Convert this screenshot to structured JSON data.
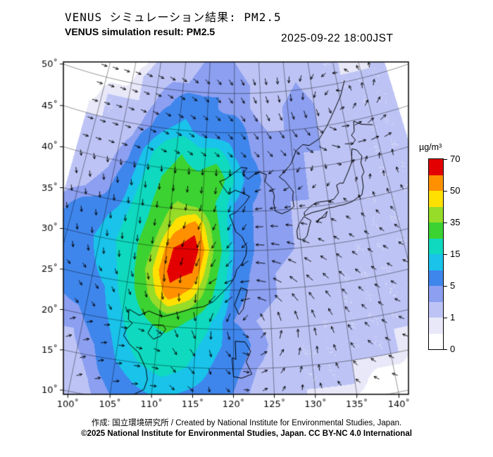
{
  "header": {
    "title_ja": "VENUS シミュレーション結果: PM2.5",
    "title_en": "VENUS simulation result: PM2.5",
    "timestamp": "2025-09-22 18:00JST"
  },
  "footer": {
    "credit": "作成: 国立環境研究所 / Created by National Institute for Environmental Studies, Japan.",
    "copyright": "©2025 National Institute for Environmental Studies, Japan. CC BY-NC 4.0 International"
  },
  "chart_data": {
    "type": "heatmap",
    "title": "VENUS simulation result: PM2.5",
    "variable": "PM2.5",
    "units": "µg/m³",
    "projection": {
      "type": "equidistant-conic",
      "standard_parallels": [
        25,
        45
      ],
      "central_meridian": 120.3
    },
    "x_axis": {
      "label": "longitude",
      "ticks": [
        {
          "label": "100˚",
          "lon": 100
        },
        {
          "label": "105˚",
          "lon": 105
        },
        {
          "label": "110˚",
          "lon": 110
        },
        {
          "label": "115˚",
          "lon": 115
        },
        {
          "label": "120˚",
          "lon": 120
        },
        {
          "label": "125˚",
          "lon": 125
        },
        {
          "label": "130˚",
          "lon": 130
        },
        {
          "label": "135˚",
          "lon": 135
        },
        {
          "label": "140˚",
          "lon": 140
        }
      ]
    },
    "y_axis": {
      "label": "latitude",
      "ticks": [
        {
          "label": "50˚",
          "lat": 50
        },
        {
          "label": "45˚",
          "lat": 45
        },
        {
          "label": "40˚",
          "lat": 40
        },
        {
          "label": "35˚",
          "lat": 35
        },
        {
          "label": "30˚",
          "lat": 30
        },
        {
          "label": "25˚",
          "lat": 25
        },
        {
          "label": "20˚",
          "lat": 20
        },
        {
          "label": "15˚",
          "lat": 15
        },
        {
          "label": "10˚",
          "lat": 10
        }
      ]
    },
    "scale": {
      "unit_label": "µg/m³",
      "levels": [
        0,
        1,
        5,
        15,
        35,
        50,
        70
      ],
      "ticks": [
        "70",
        "50",
        "35",
        "15",
        "5",
        "1",
        "0"
      ],
      "colors": [
        "#ffffff",
        "#e8e8f8",
        "#bdc4f5",
        "#8c9ff0",
        "#3f86ec",
        "#19c3ea",
        "#0fd9be",
        "#3cd232",
        "#96dc28",
        "#ffe000",
        "#ff9100",
        "#e30000"
      ]
    },
    "grid": {
      "lon0": 93,
      "dlon": 3,
      "lat0": 54,
      "dlat": 3,
      "values": [
        [
          0,
          0,
          0,
          0,
          1,
          2,
          2,
          3,
          4,
          3,
          2,
          1,
          1,
          2,
          2,
          1,
          1,
          0,
          1,
          1
        ],
        [
          0,
          0,
          0,
          1,
          2,
          3,
          3,
          4,
          5,
          4,
          3,
          2,
          2,
          3,
          2,
          1,
          1,
          1,
          1,
          1
        ],
        [
          0,
          1,
          1,
          1,
          3,
          5,
          8,
          6,
          5,
          4,
          3,
          2,
          3,
          4,
          3,
          2,
          1,
          1,
          1,
          1
        ],
        [
          1,
          1,
          1,
          2,
          5,
          10,
          12,
          8,
          6,
          8,
          4,
          3,
          3,
          4,
          3,
          2,
          2,
          1,
          1,
          1
        ],
        [
          1,
          2,
          2,
          4,
          12,
          20,
          25,
          18,
          20,
          10,
          5,
          4,
          3,
          3,
          3,
          2,
          2,
          1,
          1,
          1
        ],
        [
          2,
          2,
          3,
          6,
          15,
          25,
          30,
          28,
          35,
          15,
          6,
          4,
          3,
          3,
          2,
          2,
          2,
          1,
          1,
          1
        ],
        [
          2,
          3,
          4,
          8,
          18,
          28,
          35,
          30,
          25,
          10,
          5,
          4,
          3,
          3,
          2,
          2,
          1,
          1,
          1,
          1
        ],
        [
          4,
          7,
          8,
          12,
          20,
          30,
          45,
          55,
          30,
          8,
          5,
          4,
          3,
          2,
          2,
          2,
          1,
          1,
          1,
          1
        ],
        [
          5,
          9,
          10,
          14,
          22,
          35,
          60,
          68,
          35,
          10,
          5,
          4,
          3,
          2,
          2,
          1,
          1,
          1,
          1,
          1
        ],
        [
          4,
          8,
          9,
          12,
          20,
          40,
          65,
          60,
          30,
          8,
          4,
          3,
          2,
          2,
          1,
          1,
          1,
          1,
          1,
          1
        ],
        [
          3,
          6,
          8,
          10,
          18,
          35,
          55,
          45,
          25,
          6,
          4,
          3,
          2,
          2,
          1,
          1,
          1,
          1,
          1,
          1
        ],
        [
          2,
          4,
          5,
          8,
          15,
          25,
          30,
          25,
          15,
          5,
          3,
          2,
          2,
          1,
          1,
          1,
          1,
          1,
          1,
          1
        ],
        [
          2,
          3,
          3,
          6,
          12,
          20,
          22,
          18,
          12,
          8,
          4,
          2,
          1,
          1,
          1,
          1,
          1,
          1,
          0,
          0
        ],
        [
          1,
          2,
          2,
          4,
          10,
          15,
          18,
          15,
          10,
          6,
          3,
          2,
          1,
          1,
          1,
          1,
          1,
          0,
          0,
          0
        ],
        [
          1,
          1,
          1,
          3,
          6,
          10,
          12,
          10,
          8,
          5,
          2,
          1,
          1,
          1,
          1,
          0,
          0,
          0,
          0,
          0
        ],
        [
          0,
          1,
          1,
          2,
          4,
          6,
          8,
          6,
          5,
          3,
          2,
          1,
          1,
          0,
          0,
          0,
          0,
          0,
          0,
          0
        ]
      ]
    },
    "wind": {
      "style": "arrows",
      "vortices": [
        {
          "lon": 122.5,
          "lat": 21.5,
          "strength": 6,
          "radius": 4
        },
        {
          "lon": 139.0,
          "lat": 46.0,
          "strength": 3.5,
          "radius": 5
        }
      ]
    },
    "coastlines": [
      [
        [
          105.8,
          21.6
        ],
        [
          107.3,
          21.0
        ],
        [
          108.5,
          21.7
        ],
        [
          109.5,
          21.4
        ],
        [
          110.5,
          21.2
        ],
        [
          111.8,
          21.6
        ],
        [
          113.2,
          22.1
        ],
        [
          114.3,
          22.5
        ],
        [
          115.8,
          22.8
        ],
        [
          117.2,
          23.5
        ],
        [
          118.1,
          24.4
        ],
        [
          119.3,
          25.5
        ],
        [
          120.1,
          26.6
        ],
        [
          120.4,
          27.6
        ],
        [
          121.2,
          28.4
        ],
        [
          121.8,
          29.5
        ],
        [
          121.9,
          30.5
        ],
        [
          121.2,
          31.8
        ],
        [
          120.3,
          32.4
        ],
        [
          119.8,
          33.5
        ],
        [
          119.3,
          34.5
        ],
        [
          120.3,
          34.9
        ],
        [
          121.8,
          36.1
        ],
        [
          122.5,
          36.9
        ],
        [
          121.5,
          37.3
        ],
        [
          120.2,
          37.7
        ],
        [
          119.1,
          37.2
        ],
        [
          118.1,
          38.2
        ],
        [
          117.6,
          38.8
        ],
        [
          118.6,
          39.1
        ],
        [
          120.0,
          39.9
        ],
        [
          121.2,
          40.6
        ],
        [
          122.2,
          40.5
        ],
        [
          121.4,
          39.8
        ],
        [
          122.3,
          39.1
        ],
        [
          123.6,
          39.8
        ],
        [
          124.4,
          39.9
        ]
      ],
      [
        [
          124.4,
          39.9
        ],
        [
          125.4,
          39.6
        ],
        [
          125.1,
          38.7
        ],
        [
          126.2,
          37.8
        ],
        [
          126.5,
          36.8
        ],
        [
          126.3,
          36.0
        ],
        [
          126.5,
          34.9
        ],
        [
          127.5,
          34.5
        ],
        [
          128.6,
          34.8
        ],
        [
          129.5,
          35.3
        ],
        [
          129.4,
          36.3
        ],
        [
          129.6,
          37.2
        ],
        [
          128.4,
          38.6
        ],
        [
          127.5,
          39.2
        ],
        [
          128.7,
          40.0
        ],
        [
          129.7,
          40.8
        ],
        [
          130.7,
          42.3
        ]
      ],
      [
        [
          130.7,
          42.3
        ],
        [
          132.0,
          43.0
        ],
        [
          133.1,
          42.8
        ],
        [
          135.1,
          43.5
        ],
        [
          136.8,
          45.0
        ],
        [
          138.3,
          46.5
        ],
        [
          140.2,
          48.4
        ],
        [
          141.5,
          50.2
        ]
      ],
      [
        [
          129.6,
          31.2
        ],
        [
          130.2,
          31.0
        ],
        [
          130.7,
          31.1
        ],
        [
          131.1,
          31.5
        ],
        [
          131.5,
          32.5
        ],
        [
          131.9,
          33.3
        ],
        [
          130.9,
          33.9
        ],
        [
          130.0,
          33.0
        ],
        [
          129.6,
          32.2
        ],
        [
          129.6,
          31.2
        ]
      ],
      [
        [
          131.0,
          34.0
        ],
        [
          132.3,
          34.3
        ],
        [
          133.5,
          34.4
        ],
        [
          135.0,
          34.6
        ],
        [
          135.7,
          34.6
        ],
        [
          136.5,
          34.7
        ],
        [
          137.3,
          34.7
        ],
        [
          138.7,
          34.9
        ],
        [
          139.7,
          35.3
        ],
        [
          140.4,
          35.5
        ],
        [
          140.9,
          36.5
        ],
        [
          141.0,
          37.8
        ],
        [
          141.5,
          38.3
        ],
        [
          141.3,
          39.5
        ],
        [
          141.7,
          40.3
        ],
        [
          141.1,
          41.2
        ],
        [
          140.3,
          41.5
        ],
        [
          140.0,
          40.5
        ],
        [
          139.8,
          39.8
        ],
        [
          139.0,
          38.8
        ],
        [
          137.8,
          37.4
        ],
        [
          137.3,
          37.5
        ],
        [
          136.7,
          37.3
        ],
        [
          136.8,
          36.3
        ],
        [
          135.9,
          35.6
        ],
        [
          135.2,
          35.5
        ],
        [
          134.2,
          35.5
        ],
        [
          133.1,
          35.5
        ],
        [
          132.1,
          35.1
        ],
        [
          131.0,
          34.4
        ],
        [
          131.0,
          34.0
        ]
      ],
      [
        [
          140.4,
          42.0
        ],
        [
          141.2,
          42.5
        ],
        [
          140.7,
          43.2
        ],
        [
          141.3,
          43.6
        ],
        [
          141.6,
          44.9
        ],
        [
          142.8,
          44.3
        ],
        [
          143.8,
          44.1
        ],
        [
          144.8,
          43.9
        ]
      ],
      [
        [
          132.7,
          33.0
        ],
        [
          133.6,
          33.5
        ],
        [
          134.6,
          34.2
        ],
        [
          134.2,
          33.5
        ],
        [
          133.2,
          33.4
        ],
        [
          132.7,
          33.0
        ]
      ],
      [
        [
          121.0,
          25.3
        ],
        [
          121.9,
          25.0
        ],
        [
          121.3,
          22.6
        ],
        [
          120.7,
          21.9
        ],
        [
          120.1,
          23.1
        ],
        [
          121.0,
          25.3
        ]
      ],
      [
        [
          109.2,
          20.0
        ],
        [
          110.6,
          20.1
        ],
        [
          111.0,
          19.6
        ],
        [
          110.4,
          18.7
        ],
        [
          109.5,
          18.2
        ],
        [
          108.7,
          18.9
        ],
        [
          109.2,
          20.0
        ]
      ],
      [
        [
          105.8,
          21.6
        ],
        [
          105.9,
          20.3
        ],
        [
          106.5,
          19.9
        ],
        [
          105.8,
          19.0
        ],
        [
          105.6,
          18.2
        ],
        [
          106.5,
          17.2
        ],
        [
          107.8,
          16.3
        ],
        [
          108.3,
          15.5
        ],
        [
          109.0,
          14.3
        ],
        [
          109.3,
          13.0
        ],
        [
          109.0,
          11.7
        ],
        [
          107.2,
          10.5
        ],
        [
          105.5,
          9.9
        ],
        [
          104.8,
          10.2
        ]
      ],
      [
        [
          120.0,
          14.0
        ],
        [
          119.8,
          16.4
        ],
        [
          120.3,
          16.2
        ],
        [
          120.2,
          18.5
        ],
        [
          121.5,
          18.4
        ],
        [
          122.2,
          17.2
        ],
        [
          121.6,
          15.9
        ],
        [
          122.3,
          14.3
        ],
        [
          121.0,
          13.8
        ],
        [
          120.0,
          14.0
        ]
      ]
    ]
  }
}
